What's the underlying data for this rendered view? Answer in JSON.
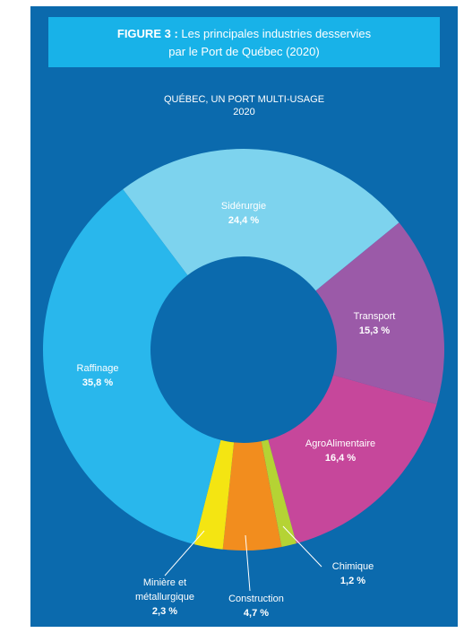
{
  "figure": {
    "prefix": "FIGURE 3 :",
    "title_line1": "Les principales industries desservies",
    "title_line2": "par le Port de Québec (2020)"
  },
  "chart_data": {
    "type": "pie",
    "title": "QUÉBEC, UN PORT MULTI-USAGE",
    "subtitle": "2020",
    "donut": true,
    "slices": [
      {
        "label": "Sidérurgie",
        "value": 24.4,
        "display": "24,4 %",
        "color": "#7dd3ee"
      },
      {
        "label": "Transport",
        "value": 15.3,
        "display": "15,3 %",
        "color": "#9b5aa8"
      },
      {
        "label": "AgroAlimentaire",
        "value": 16.4,
        "display": "16,4 %",
        "color": "#c6479b"
      },
      {
        "label": "Chimique",
        "value": 1.2,
        "display": "1,2 %",
        "color": "#b5d334"
      },
      {
        "label": "Construction",
        "value": 4.7,
        "display": "4,7 %",
        "color": "#f28d1e"
      },
      {
        "label": "Minière et métallurgique",
        "label_line1": "Minière et",
        "label_line2": "métallurgique",
        "value": 2.3,
        "display": "2,3 %",
        "color": "#f4e512"
      },
      {
        "label": "Raffinage",
        "value": 35.8,
        "display": "35,8 %",
        "color": "#29b7ec"
      }
    ]
  }
}
